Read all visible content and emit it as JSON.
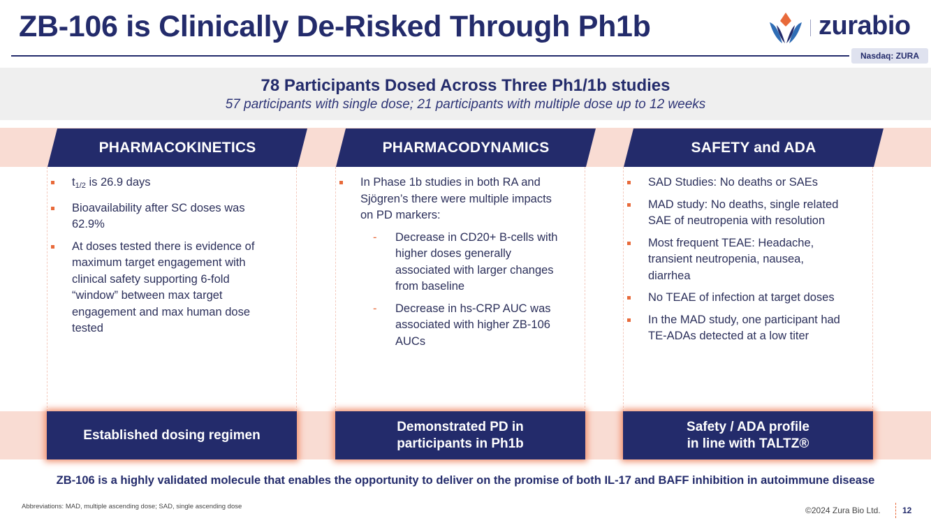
{
  "header": {
    "title": "ZB-106 is Clinically De-Risked Through Ph1b",
    "logo_text": "zurabio",
    "ticker": "Nasdaq: ZURA"
  },
  "summary": {
    "headline": "78 Participants Dosed Across Three Ph1/1b studies",
    "subline": "57 participants with single dose; 21 participants with multiple dose up to 12 weeks"
  },
  "columns": [
    {
      "header": "PHARMACOKINETICS",
      "bullets": [
        {
          "t": "t",
          "sub": "1/2",
          "rest": " is 26.9 days"
        },
        "Bioavailability after SC doses was 62.9%",
        "At doses tested there is evidence of maximum target engagement with clinical safety supporting 6-fold “window” between max target engagement and max human dose tested"
      ],
      "callout": "Established dosing regimen"
    },
    {
      "header": "PHARMACODYNAMICS",
      "bullets": [
        "In Phase 1b studies in both RA and Sjögren’s there were multiple impacts on PD markers:"
      ],
      "sub_bullets": [
        "Decrease in CD20+ B-cells with higher doses generally associated with larger changes from baseline",
        "Decrease in hs-CRP AUC was associated with higher ZB-106 AUCs"
      ],
      "callout_line1": "Demonstrated PD in",
      "callout_line2": "participants in Ph1b"
    },
    {
      "header": "SAFETY and ADA",
      "bullets": [
        "SAD Studies: No deaths or SAEs",
        "MAD study: No deaths, single related SAE of neutropenia with resolution",
        "Most frequent TEAE: Headache, transient neutropenia, nausea, diarrhea",
        "No TEAE of infection at target doses",
        "In the MAD study, one participant had TE-ADAs detected at a low titer"
      ],
      "callout_line1": "Safety / ADA profile",
      "callout_line2": "in line with TALTZ®"
    }
  ],
  "conclusion": "ZB-106 is a highly validated molecule that enables the opportunity to deliver on the promise of both IL-17 and BAFF inhibition in autoimmune disease",
  "footer": {
    "abbreviations": "Abbreviations: MAD, multiple ascending dose; SAD, single ascending dose",
    "copyright": "©2024 Zura Bio Ltd.",
    "page_number": "12"
  },
  "colors": {
    "navy": "#232b6b",
    "accent_orange": "#e86a3a",
    "band_peach": "#f9dcd3",
    "summary_gray": "#efefef"
  },
  "icons": {
    "logo": "zurabio-flame-logo-icon"
  }
}
